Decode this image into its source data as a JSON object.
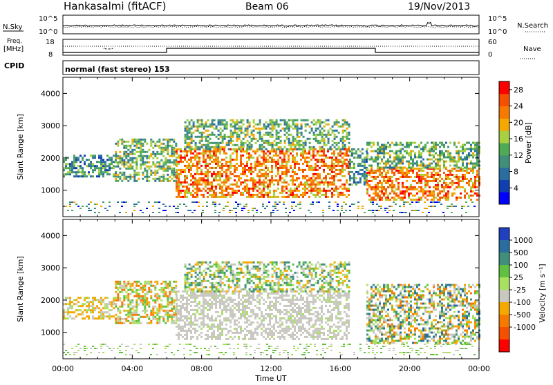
{
  "header": {
    "station": "Hankasalmi (fitACF)",
    "beam": "Beam 06",
    "date": "19/Nov/2013"
  },
  "noise_panel": {
    "left_label": "N.Sky",
    "right_label": "N.Search",
    "tick_top": "10^5",
    "tick_bottom": "10^0"
  },
  "freq_panel": {
    "label_line1": "Freq.",
    "label_line2": "[MHz]",
    "right_label": "Nave",
    "left_ticks": [
      "18",
      "8"
    ],
    "right_ticks": [
      "60",
      "0"
    ]
  },
  "cpid": {
    "label": "CPID",
    "mode": "normal (fast stereo) 153"
  },
  "chart_data": [
    {
      "type": "heatmap",
      "quantity": "Power",
      "ylabel": "Slant Range [km]",
      "ylim": [
        180,
        4500
      ],
      "y_ticks": [
        "1000",
        "2000",
        "3000",
        "4000"
      ],
      "x_ticks": [
        "00:00",
        "04:00",
        "08:00",
        "12:00",
        "16:00",
        "20:00",
        "00:00"
      ],
      "xlim_hours": [
        0,
        24
      ],
      "colorbar": {
        "label": "Power [dB]",
        "ticks": [
          "4",
          "8",
          "12",
          "16",
          "20",
          "24",
          "28"
        ],
        "range": [
          0,
          30
        ],
        "colors": [
          "#0000ff",
          "#0f3fb0",
          "#2a6ea0",
          "#3f8f7a",
          "#4faa55",
          "#a8d040",
          "#f5a800",
          "#f77a00",
          "#f55000",
          "#ff0000"
        ]
      },
      "echo_regions": [
        {
          "t0": 0.0,
          "t1": 3.0,
          "r0": 1400,
          "r1": 2100,
          "level": "low-mid"
        },
        {
          "t0": 3.0,
          "t1": 6.5,
          "r0": 1300,
          "r1": 2600,
          "level": "mid"
        },
        {
          "t0": 6.5,
          "t1": 16.5,
          "r0": 800,
          "r1": 2300,
          "level": "high"
        },
        {
          "t0": 7.0,
          "t1": 16.5,
          "r0": 2300,
          "r1": 3200,
          "level": "mid"
        },
        {
          "t0": 16.5,
          "t1": 17.5,
          "r0": 1200,
          "r1": 2300,
          "level": "low"
        },
        {
          "t0": 17.5,
          "t1": 24.0,
          "r0": 700,
          "r1": 1700,
          "level": "high"
        },
        {
          "t0": 17.5,
          "t1": 24.0,
          "r0": 1700,
          "r1": 2500,
          "level": "mid"
        }
      ]
    },
    {
      "type": "heatmap",
      "quantity": "Velocity",
      "ylabel": "Slant Range [km]",
      "ylim": [
        180,
        4500
      ],
      "y_ticks": [
        "1000",
        "2000",
        "3000",
        "4000"
      ],
      "x_ticks": [
        "00:00",
        "04:00",
        "08:00",
        "12:00",
        "16:00",
        "20:00",
        "00:00"
      ],
      "xlabel": "Time UT",
      "xlim_hours": [
        0,
        24
      ],
      "colorbar": {
        "label": "Velocity [m s⁻¹]",
        "ticks": [
          "1000",
          "500",
          "100",
          "25",
          "-25",
          "-100",
          "-500",
          "-1000"
        ],
        "colors": [
          "#2040c0",
          "#2a6ea0",
          "#3f8f7a",
          "#60c040",
          "#a8e060",
          "#c8c8c0",
          "#f5a800",
          "#f77a00",
          "#f55000",
          "#ff0000"
        ]
      },
      "echo_regions": [
        {
          "t0": 0.0,
          "t1": 3.0,
          "r0": 1400,
          "r1": 2100,
          "class": "orange"
        },
        {
          "t0": 3.0,
          "t1": 6.5,
          "r0": 1300,
          "r1": 2600,
          "class": "orange-green"
        },
        {
          "t0": 6.5,
          "t1": 16.5,
          "r0": 800,
          "r1": 2300,
          "class": "gray"
        },
        {
          "t0": 7.0,
          "t1": 16.5,
          "r0": 2300,
          "r1": 3200,
          "class": "green-orange"
        },
        {
          "t0": 17.5,
          "t1": 24.0,
          "r0": 700,
          "r1": 2500,
          "class": "gray-green-orange"
        }
      ]
    }
  ]
}
